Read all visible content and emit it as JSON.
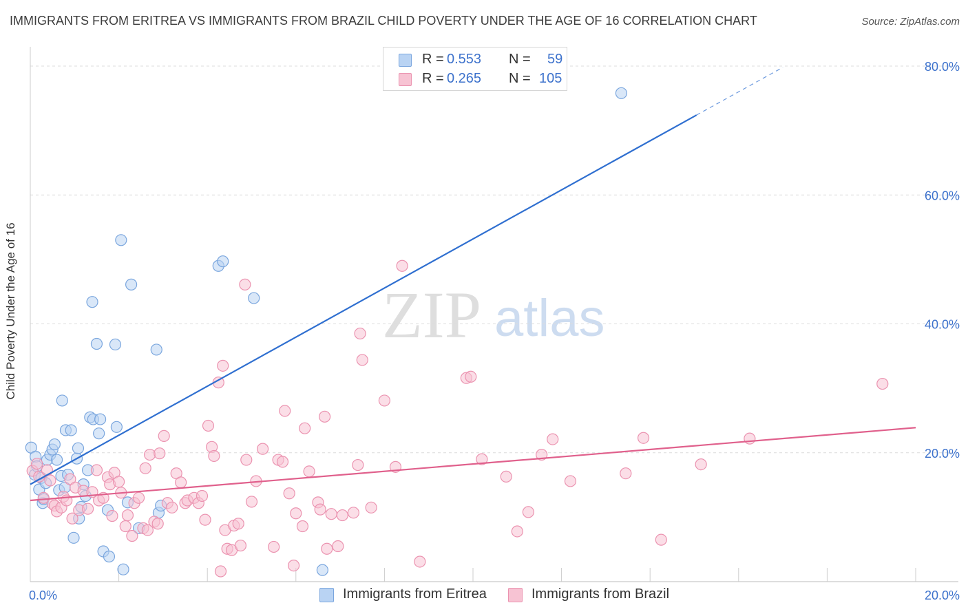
{
  "title": "IMMIGRANTS FROM ERITREA VS IMMIGRANTS FROM BRAZIL CHILD POVERTY UNDER THE AGE OF 16 CORRELATION CHART",
  "source": "Source: ZipAtlas.com",
  "watermark": {
    "zip": "ZIP",
    "atlas": "atlas"
  },
  "legend_top": {
    "rows": [
      {
        "r_label": "R =",
        "r_value": "0.553",
        "n_label": "N =",
        "n_value": "59"
      },
      {
        "r_label": "R =",
        "r_value": "0.265",
        "n_label": "N =",
        "n_value": "105"
      }
    ]
  },
  "legend_bottom": {
    "eritrea": "Immigrants from Eritrea",
    "brazil": "Immigrants from Brazil"
  },
  "colors": {
    "eritrea_fill": "#b9d3f3",
    "eritrea_stroke": "#7aa6de",
    "eritrea_line": "#2f6fd0",
    "brazil_fill": "#f7c3d3",
    "brazil_stroke": "#eb93b0",
    "brazil_line": "#e0608c",
    "grid": "#dcdcdc",
    "tick_label": "#3d72cc"
  },
  "chart_data": {
    "type": "scatter",
    "title": "IMMIGRANTS FROM ERITREA VS IMMIGRANTS FROM BRAZIL CHILD POVERTY UNDER THE AGE OF 16 CORRELATION CHART",
    "xlabel": "",
    "ylabel": "Child Poverty Under the Age of 16",
    "xlim": [
      0,
      20
    ],
    "ylim": [
      0,
      80
    ],
    "x_ticks": [
      {
        "value": 0,
        "label": "0.0%"
      },
      {
        "value": 20,
        "label": "20.0%"
      }
    ],
    "y_ticks": [
      {
        "value": 20,
        "label": "20.0%"
      },
      {
        "value": 40,
        "label": "40.0%"
      },
      {
        "value": 60,
        "label": "60.0%"
      },
      {
        "value": 80,
        "label": "80.0%"
      }
    ],
    "grid": true,
    "legend_position": "top-center",
    "series": [
      {
        "name": "Immigrants from Eritrea",
        "color": "#7aa6de",
        "trend": {
          "x0": 0,
          "y0": 15.1,
          "x1": 15.05,
          "y1": 72.4,
          "dash_to": [
            17.0,
            79.8
          ]
        },
        "points": [
          [
            0.02,
            20.8
          ],
          [
            0.1,
            16.6
          ],
          [
            0.12,
            19.4
          ],
          [
            0.15,
            17.9
          ],
          [
            0.2,
            14.3
          ],
          [
            0.25,
            16.1
          ],
          [
            0.28,
            12.2
          ],
          [
            0.3,
            12.8
          ],
          [
            0.35,
            15.3
          ],
          [
            0.38,
            18.9
          ],
          [
            0.45,
            19.7
          ],
          [
            0.5,
            20.5
          ],
          [
            0.55,
            21.3
          ],
          [
            0.6,
            18.9
          ],
          [
            0.65,
            14.2
          ],
          [
            0.7,
            16.4
          ],
          [
            0.72,
            28.1
          ],
          [
            0.78,
            14.6
          ],
          [
            0.8,
            23.5
          ],
          [
            0.85,
            16.6
          ],
          [
            0.92,
            23.5
          ],
          [
            0.98,
            6.8
          ],
          [
            1.05,
            19.1
          ],
          [
            1.08,
            20.7
          ],
          [
            1.1,
            9.8
          ],
          [
            1.15,
            11.6
          ],
          [
            1.2,
            15.1
          ],
          [
            1.25,
            13.3
          ],
          [
            1.3,
            17.3
          ],
          [
            1.35,
            25.5
          ],
          [
            1.4,
            43.4
          ],
          [
            1.42,
            25.2
          ],
          [
            1.5,
            36.9
          ],
          [
            1.55,
            23.0
          ],
          [
            1.58,
            25.2
          ],
          [
            1.65,
            4.7
          ],
          [
            1.75,
            11.1
          ],
          [
            1.78,
            3.9
          ],
          [
            1.92,
            36.8
          ],
          [
            1.95,
            24.0
          ],
          [
            2.05,
            53.0
          ],
          [
            2.1,
            1.9
          ],
          [
            2.2,
            12.3
          ],
          [
            2.28,
            46.1
          ],
          [
            2.45,
            8.3
          ],
          [
            2.85,
            36.0
          ],
          [
            2.9,
            10.7
          ],
          [
            2.95,
            11.8
          ],
          [
            4.25,
            49.0
          ],
          [
            4.35,
            49.7
          ],
          [
            5.05,
            44.0
          ],
          [
            6.6,
            1.8
          ],
          [
            13.35,
            75.8
          ]
        ]
      },
      {
        "name": "Immigrants from Brazil",
        "color": "#eb93b0",
        "trend": {
          "x0": 0,
          "y0": 12.6,
          "x1": 20.0,
          "y1": 23.9
        },
        "points": [
          [
            0.05,
            17.2
          ],
          [
            0.15,
            18.3
          ],
          [
            0.2,
            16.3
          ],
          [
            0.3,
            13.0
          ],
          [
            0.38,
            17.3
          ],
          [
            0.45,
            15.7
          ],
          [
            0.5,
            12.1
          ],
          [
            0.55,
            11.8
          ],
          [
            0.6,
            10.9
          ],
          [
            0.7,
            11.5
          ],
          [
            0.75,
            13.2
          ],
          [
            0.82,
            12.6
          ],
          [
            0.9,
            15.9
          ],
          [
            0.95,
            9.8
          ],
          [
            1.02,
            14.6
          ],
          [
            1.1,
            11.1
          ],
          [
            1.2,
            14.1
          ],
          [
            1.3,
            11.3
          ],
          [
            1.4,
            13.9
          ],
          [
            1.5,
            17.3
          ],
          [
            1.55,
            12.6
          ],
          [
            1.65,
            13.0
          ],
          [
            1.75,
            16.2
          ],
          [
            1.8,
            15.1
          ],
          [
            1.85,
            10.2
          ],
          [
            1.9,
            16.9
          ],
          [
            2.0,
            15.5
          ],
          [
            2.05,
            13.8
          ],
          [
            2.15,
            8.6
          ],
          [
            2.2,
            10.3
          ],
          [
            2.3,
            7.1
          ],
          [
            2.35,
            12.2
          ],
          [
            2.45,
            13.0
          ],
          [
            2.55,
            8.3
          ],
          [
            2.6,
            17.6
          ],
          [
            2.65,
            8.0
          ],
          [
            2.7,
            19.7
          ],
          [
            2.8,
            9.3
          ],
          [
            2.88,
            9.0
          ],
          [
            2.92,
            19.9
          ],
          [
            3.02,
            22.6
          ],
          [
            3.1,
            12.2
          ],
          [
            3.2,
            11.5
          ],
          [
            3.3,
            16.8
          ],
          [
            3.4,
            15.4
          ],
          [
            3.5,
            12.2
          ],
          [
            3.55,
            12.6
          ],
          [
            3.7,
            13.0
          ],
          [
            3.8,
            12.2
          ],
          [
            3.88,
            13.3
          ],
          [
            3.95,
            9.6
          ],
          [
            4.02,
            24.2
          ],
          [
            4.1,
            20.9
          ],
          [
            4.15,
            19.5
          ],
          [
            4.25,
            30.9
          ],
          [
            4.3,
            1.6
          ],
          [
            4.35,
            33.5
          ],
          [
            4.4,
            8.0
          ],
          [
            4.45,
            5.1
          ],
          [
            4.55,
            4.9
          ],
          [
            4.6,
            8.7
          ],
          [
            4.7,
            9.0
          ],
          [
            4.75,
            5.6
          ],
          [
            4.85,
            46.1
          ],
          [
            4.88,
            18.9
          ],
          [
            5.0,
            12.4
          ],
          [
            5.1,
            15.6
          ],
          [
            5.25,
            20.6
          ],
          [
            5.5,
            5.4
          ],
          [
            5.6,
            18.9
          ],
          [
            5.7,
            18.6
          ],
          [
            5.75,
            26.5
          ],
          [
            5.85,
            13.7
          ],
          [
            5.95,
            2.5
          ],
          [
            6.0,
            10.6
          ],
          [
            6.15,
            8.6
          ],
          [
            6.2,
            23.8
          ],
          [
            6.3,
            17.1
          ],
          [
            6.5,
            12.3
          ],
          [
            6.55,
            11.2
          ],
          [
            6.65,
            25.6
          ],
          [
            6.7,
            5.1
          ],
          [
            6.8,
            10.5
          ],
          [
            6.95,
            5.5
          ],
          [
            7.05,
            10.3
          ],
          [
            7.3,
            10.7
          ],
          [
            7.4,
            18.1
          ],
          [
            7.5,
            34.4
          ],
          [
            7.45,
            38.5
          ],
          [
            7.7,
            11.5
          ],
          [
            8.0,
            28.1
          ],
          [
            8.25,
            17.8
          ],
          [
            8.4,
            49.0
          ],
          [
            8.8,
            3.1
          ],
          [
            9.85,
            31.6
          ],
          [
            9.95,
            31.8
          ],
          [
            10.2,
            19.0
          ],
          [
            10.75,
            16.3
          ],
          [
            11.0,
            7.8
          ],
          [
            11.25,
            10.8
          ],
          [
            11.55,
            19.7
          ],
          [
            11.8,
            22.1
          ],
          [
            12.2,
            15.6
          ],
          [
            13.45,
            16.8
          ],
          [
            13.85,
            22.3
          ],
          [
            14.25,
            6.5
          ],
          [
            15.15,
            18.2
          ],
          [
            16.25,
            22.2
          ],
          [
            19.25,
            30.7
          ]
        ]
      }
    ]
  }
}
